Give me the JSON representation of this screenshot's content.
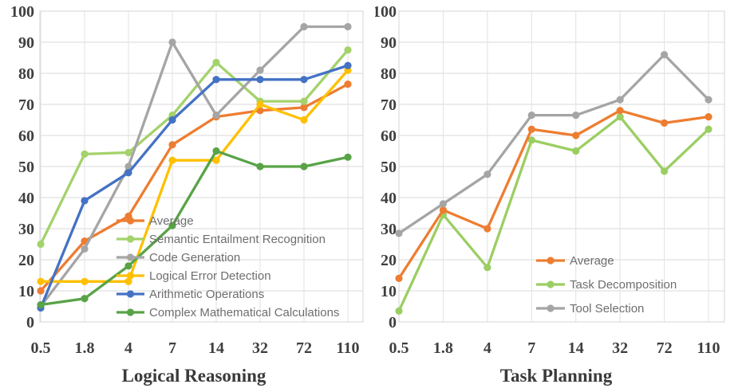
{
  "figure": {
    "background": "#FFFFFF"
  },
  "style": {
    "h_grid_color": "#D9D9D9",
    "v_grid_color": "#E2E2E2",
    "border_color": "#D4D4D4",
    "tick_label_color": "#3F3F3F",
    "title_color": "#3A3A3A",
    "legend_text_color": "#6E6E6E"
  },
  "chart_data": [
    {
      "type": "line",
      "title": "Logical Reasoning",
      "x_categories": [
        "0.5",
        "1.8",
        "4",
        "7",
        "14",
        "32",
        "72",
        "110"
      ],
      "ylim": [
        0,
        100
      ],
      "y_ticks": [
        0,
        10,
        20,
        30,
        40,
        50,
        60,
        70,
        80,
        90,
        100
      ],
      "grid": true,
      "legend_position": "inside-bottom-left",
      "series": [
        {
          "name": "Average",
          "color": "#ED7D31",
          "values": [
            10,
            26,
            34,
            57,
            66,
            68,
            69,
            76.5
          ]
        },
        {
          "name": "Semantic Entailment Recognition",
          "color": "#A4D26B",
          "values": [
            25,
            54,
            54.5,
            66.5,
            83.5,
            71,
            71,
            87.5
          ]
        },
        {
          "name": "Code Generation",
          "color": "#A5A5A5",
          "values": [
            5,
            23.5,
            50,
            90,
            66.5,
            81,
            95,
            95
          ]
        },
        {
          "name": "Logical Error Detection",
          "color": "#FFC000",
          "values": [
            13,
            13,
            13,
            52,
            52,
            70,
            65,
            81
          ]
        },
        {
          "name": "Arithmetic Operations",
          "color": "#4472C4",
          "values": [
            4.5,
            39,
            48,
            65,
            78,
            78,
            78,
            82.5
          ]
        },
        {
          "name": "Complex Mathematical Calculations",
          "color": "#58A346",
          "values": [
            5.5,
            7.5,
            18,
            31,
            55,
            50,
            50,
            53
          ]
        }
      ],
      "draw_order": [
        0,
        1,
        2,
        3,
        4,
        5
      ]
    },
    {
      "type": "line",
      "title": "Task Planning",
      "x_categories": [
        "0.5",
        "1.8",
        "4",
        "7",
        "14",
        "32",
        "72",
        "110"
      ],
      "ylim": [
        0,
        100
      ],
      "y_ticks": [
        0,
        10,
        20,
        30,
        40,
        50,
        60,
        70,
        80,
        90,
        100
      ],
      "grid": true,
      "legend_position": "inside-middle-left",
      "series": [
        {
          "name": "Average",
          "color": "#ED7D31",
          "values": [
            14,
            36,
            30,
            62,
            60,
            68,
            64,
            66
          ]
        },
        {
          "name": "Task Decomposition",
          "color": "#9BCE62",
          "values": [
            3.5,
            34.5,
            17.5,
            58.5,
            55,
            66,
            48.5,
            62
          ]
        },
        {
          "name": "Tool Selection",
          "color": "#A5A5A5",
          "values": [
            28.5,
            38,
            47.5,
            66.5,
            66.5,
            71.5,
            86,
            71.5
          ]
        }
      ],
      "draw_order": [
        1,
        0,
        2
      ]
    }
  ]
}
